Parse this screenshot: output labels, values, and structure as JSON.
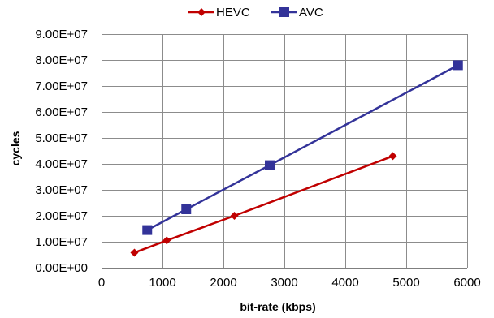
{
  "chart_data": {
    "type": "line",
    "title": "",
    "xlabel": "bit-rate (kbps)",
    "ylabel": "cycles",
    "xlim": [
      0,
      6000
    ],
    "ylim": [
      0,
      90000000
    ],
    "x_ticks": [
      0,
      1000,
      2000,
      3000,
      4000,
      5000,
      6000
    ],
    "x_tick_labels": [
      "0",
      "1000",
      "2000",
      "3000",
      "4000",
      "5000",
      "6000"
    ],
    "y_ticks": [
      0,
      10000000,
      20000000,
      30000000,
      40000000,
      50000000,
      60000000,
      70000000,
      80000000,
      90000000
    ],
    "y_tick_labels": [
      "0.00E+00",
      "1.00E+07",
      "2.00E+07",
      "3.00E+07",
      "4.00E+07",
      "5.00E+07",
      "6.00E+07",
      "7.00E+07",
      "8.00E+07",
      "9.00E+07"
    ],
    "grid": true,
    "legend_position": "top",
    "series": [
      {
        "name": "HEVC",
        "color": "#c00000",
        "marker": "diamond",
        "points": [
          [
            540,
            5800000
          ],
          [
            1070,
            10500000
          ],
          [
            2180,
            20000000
          ],
          [
            4780,
            43000000
          ]
        ]
      },
      {
        "name": "AVC",
        "color": "#333399",
        "marker": "square",
        "points": [
          [
            750,
            14500000
          ],
          [
            1390,
            22500000
          ],
          [
            2760,
            39500000
          ],
          [
            5850,
            78000000
          ]
        ]
      }
    ]
  }
}
